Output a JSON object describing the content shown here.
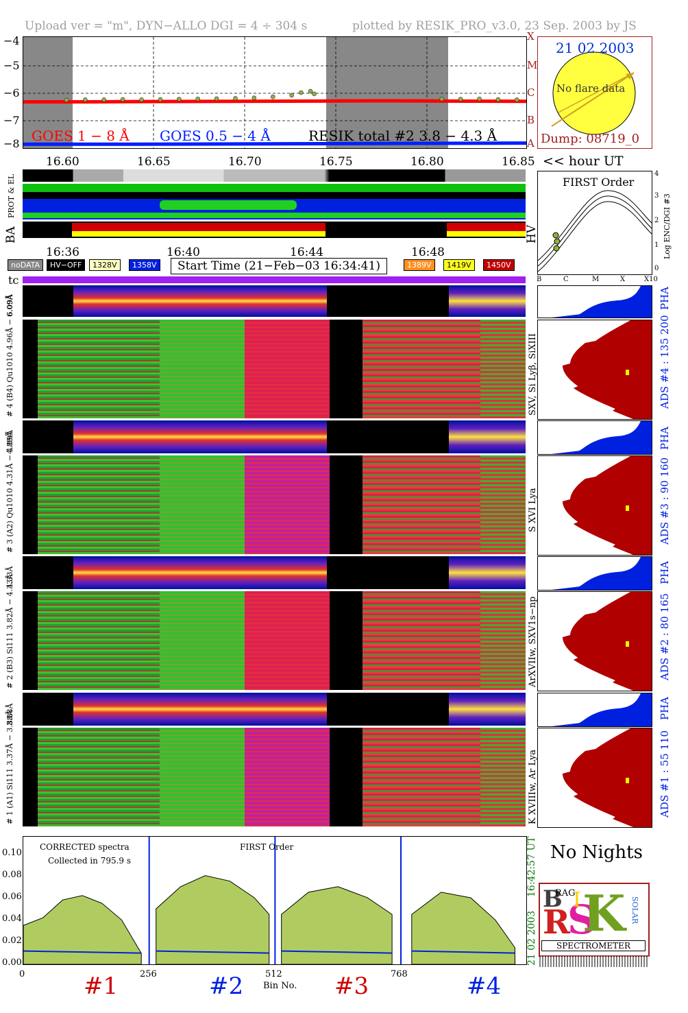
{
  "header": {
    "left": "Upload ver = \"m\", DYN−ALLO DGI =   4 ÷ 304 s",
    "right": "plotted by RESIK_PRO_v3.0, 23 Sep. 2003 by JS"
  },
  "goes_panel": {
    "y_ticks": [
      "−4",
      "−5",
      "−6",
      "−7",
      "−8"
    ],
    "x_ticks": [
      "16.60",
      "16.65",
      "16.70",
      "16.75",
      "16.80",
      "16.85"
    ],
    "x_unit": "<< hour UT",
    "class_letters": [
      "X",
      "M",
      "C",
      "B",
      "A"
    ],
    "legend": {
      "goes18": "GOES 1 − 8 Å",
      "goes054": "GOES 0.5 − 4 Å",
      "resik": "RESIK total #2  3.8 − 4.3 Å"
    },
    "colors": {
      "goes18": "#ff0000",
      "goes054": "#0020ff",
      "resik": "#90b040"
    }
  },
  "sun_panel": {
    "date": "21 02 2003",
    "message": "No flare data",
    "dump": "Dump: 08719_0"
  },
  "first_order_panel": {
    "title": "FIRST Order",
    "y_label": "Log ENC/DGI #3",
    "y_ticks": [
      "4",
      "3",
      "2",
      "1",
      "0"
    ],
    "x_ticks": [
      "B",
      "C",
      "M",
      "X",
      "X10"
    ]
  },
  "status_strip": {
    "labels": {
      "prot": "PROT & EL",
      "ba": "BA",
      "hv": "HV"
    },
    "time_ticks": [
      "16:36",
      "16:40",
      "16:44",
      "16:48"
    ],
    "badges": {
      "nodata": "noDATA",
      "hvoff": "HV−OFF",
      "v328": "1328V",
      "v358": "1358V",
      "v389": "1389V",
      "v419": "1419V",
      "v450": "1450V"
    },
    "start_time": "Start Time (21−Feb−03 16:34:41)",
    "tc": "tc"
  },
  "spectrogram_labels": {
    "ch4_top": "6.09Å",
    "ch4": "# 4 (B4) Qu1010  4.96Å − 6.09Å",
    "ch3": "# 3 (A2) Qu1010  4.31Å − 4.89Å",
    "ch3_top": "4.89Å",
    "ch2": "# 2 (B3) Si111  3.82Å − 4.33Å",
    "ch2_top": "4.33Å",
    "ch1": "# 1 (A1) Si111  3.37Å − 3.88Å",
    "ch1_top": "3.88Å"
  },
  "side_labels": {
    "pha": "PHA",
    "ads4": "ADS #4 :   135 200",
    "ads3": "ADS #3 :    90 160",
    "ads2": "ADS #2 :    80 165",
    "ads1": "ADS #1 :    55 110",
    "line4": "SXV, Si Lyβ, SiXIII",
    "line3": "S XVI Lya",
    "line2": "ArXVIIw, SXV1s−np",
    "line1": "K XVIIIw, Ar Lya"
  },
  "spectrum_panel": {
    "text1": "CORRECTED spectra",
    "text2": "Collected in   795.9 s",
    "title": "FIRST Order",
    "y_ticks": [
      "0.10",
      "0.08",
      "0.06",
      "0.04",
      "0.02",
      "0.00"
    ],
    "x_ticks": [
      "0",
      "256",
      "512",
      "768"
    ],
    "xlabel": "Bin No.",
    "channels": [
      "#1",
      "#2",
      "#3",
      "#4"
    ],
    "time_label": "16:42:57 UT",
    "date_label": "21 02 2003"
  },
  "no_nights": "No Nights",
  "logo": {
    "word": "SPECTROMETER",
    "small1": "RAG",
    "small2": "SOLAR"
  },
  "chart_data": [
    {
      "type": "line",
      "title": "",
      "xlabel": "<< hour UT",
      "ylabel": "",
      "xlim": [
        16.587,
        16.855
      ],
      "ylim": [
        -8.1,
        -3.9
      ],
      "series": [
        {
          "name": "GOES 1 − 8 Å",
          "x": [
            16.587,
            16.62,
            16.65,
            16.7,
            16.745,
            16.78,
            16.81,
            16.855
          ],
          "y": [
            -6.35,
            -6.35,
            -6.34,
            -6.33,
            -6.32,
            -6.31,
            -6.32,
            -6.33
          ]
        },
        {
          "name": "GOES 0.5 − 4 Å",
          "x": [
            16.587,
            16.65,
            16.7,
            16.745,
            16.8,
            16.855
          ],
          "y": [
            -7.95,
            -7.95,
            -7.94,
            -7.93,
            -7.92,
            -7.91
          ]
        },
        {
          "name": "RESIK total #2  3.8 − 4.3 Å",
          "x": [
            16.61,
            16.62,
            16.63,
            16.64,
            16.65,
            16.66,
            16.67,
            16.68,
            16.69,
            16.7,
            16.71,
            16.72,
            16.73,
            16.735,
            16.74,
            16.742,
            16.81,
            16.82,
            16.83,
            16.84,
            16.85
          ],
          "y": [
            -6.28,
            -6.27,
            -6.27,
            -6.26,
            -6.27,
            -6.26,
            -6.25,
            -6.24,
            -6.23,
            -6.22,
            -6.2,
            -6.16,
            -6.1,
            -6.0,
            -5.95,
            -6.05,
            -6.24,
            -6.25,
            -6.24,
            -6.26,
            -6.27
          ]
        }
      ]
    },
    {
      "type": "area",
      "title": "FIRST Order",
      "xlabel": "Bin No.",
      "ylabel": "",
      "xlim": [
        0,
        1023
      ],
      "ylim": [
        0,
        0.115
      ],
      "series": [
        {
          "name": "#1",
          "x": [
            0,
            40,
            80,
            120,
            160,
            200,
            240
          ],
          "y": [
            0.035,
            0.042,
            0.058,
            0.062,
            0.055,
            0.04,
            0.01
          ]
        },
        {
          "name": "#2",
          "x": [
            270,
            320,
            370,
            420,
            470,
            500
          ],
          "y": [
            0.05,
            0.07,
            0.08,
            0.075,
            0.06,
            0.045
          ]
        },
        {
          "name": "#3",
          "x": [
            525,
            580,
            640,
            700,
            750
          ],
          "y": [
            0.045,
            0.065,
            0.07,
            0.06,
            0.045
          ]
        },
        {
          "name": "#4",
          "x": [
            790,
            850,
            910,
            960,
            1000
          ],
          "y": [
            0.045,
            0.065,
            0.06,
            0.04,
            0.015
          ]
        }
      ]
    }
  ]
}
